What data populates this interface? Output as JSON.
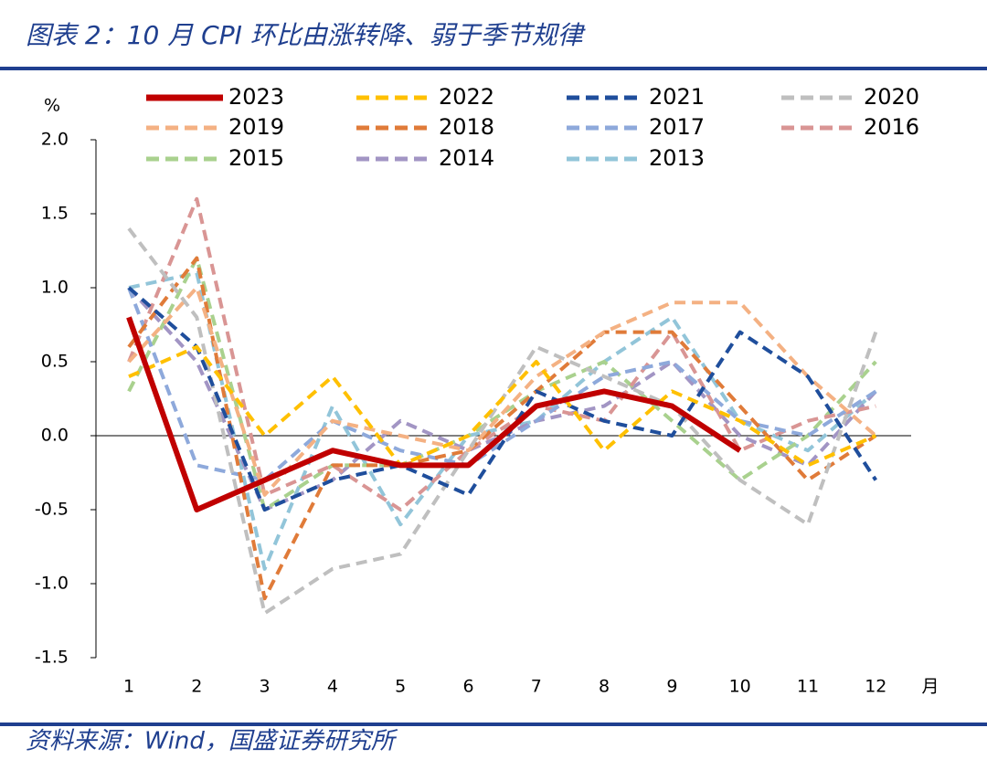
{
  "chart_data": {
    "type": "line",
    "title": "图表 2：10 月 CPI 环比由涨转降、弱于季节规律",
    "source": "资料来源：Wind，国盛证券研究所",
    "y_unit": "%",
    "x_unit": "月",
    "categories": [
      "1",
      "2",
      "3",
      "4",
      "5",
      "6",
      "7",
      "8",
      "9",
      "10",
      "11",
      "12"
    ],
    "ylim": [
      -1.5,
      2.0
    ],
    "yticks": [
      {
        "value": 2.0,
        "label": "2.0"
      },
      1.5,
      {
        "value": 1.0,
        "label": "1.0"
      },
      0.5,
      {
        "value": 0.0,
        "label": "0.0"
      },
      -0.5,
      {
        "value": -1.0,
        "label": "-1.0"
      },
      -1.5
    ],
    "grid": false,
    "series": [
      {
        "name": "2023",
        "color": "#c00000",
        "line_style": "solid",
        "values": [
          0.8,
          -0.5,
          -0.3,
          -0.1,
          -0.2,
          -0.2,
          0.2,
          0.3,
          0.2,
          -0.1,
          null,
          null
        ]
      },
      {
        "name": "2022",
        "color": "#ffc000",
        "line_style": "dashed",
        "values": [
          0.4,
          0.6,
          0.0,
          0.4,
          -0.2,
          0.0,
          0.5,
          -0.1,
          0.3,
          0.1,
          -0.2,
          0.0
        ]
      },
      {
        "name": "2021",
        "color": "#1f4e9c",
        "line_style": "dashed",
        "values": [
          1.0,
          0.6,
          -0.5,
          -0.3,
          -0.2,
          -0.4,
          0.3,
          0.1,
          0.0,
          0.7,
          0.4,
          -0.3
        ]
      },
      {
        "name": "2020",
        "color": "#bfbfbf",
        "line_style": "dashed",
        "values": [
          1.4,
          0.8,
          -1.2,
          -0.9,
          -0.8,
          -0.1,
          0.6,
          0.4,
          0.2,
          -0.3,
          -0.6,
          0.7
        ]
      },
      {
        "name": "2019",
        "color": "#f4b183",
        "line_style": "dashed",
        "values": [
          0.5,
          1.0,
          -0.4,
          0.1,
          0.0,
          -0.1,
          0.4,
          0.7,
          0.9,
          0.9,
          0.4,
          0.0
        ]
      },
      {
        "name": "2018",
        "color": "#e07b39",
        "line_style": "dashed",
        "values": [
          0.6,
          1.2,
          -1.1,
          -0.2,
          -0.2,
          -0.1,
          0.3,
          0.7,
          0.7,
          0.2,
          -0.3,
          0.0
        ]
      },
      {
        "name": "2017",
        "color": "#8ea9db",
        "line_style": "dashed",
        "values": [
          1.0,
          -0.2,
          -0.3,
          0.1,
          -0.1,
          -0.2,
          0.1,
          0.4,
          0.5,
          0.1,
          0.0,
          0.3
        ]
      },
      {
        "name": "2016",
        "color": "#d99594",
        "line_style": "dashed",
        "values": [
          0.5,
          1.6,
          -0.4,
          -0.2,
          -0.5,
          -0.1,
          0.2,
          0.1,
          0.7,
          -0.1,
          0.1,
          0.2
        ]
      },
      {
        "name": "2015",
        "color": "#a9d18e",
        "line_style": "dashed",
        "values": [
          0.3,
          1.2,
          -0.5,
          -0.2,
          -0.2,
          0.0,
          0.3,
          0.5,
          0.1,
          -0.3,
          0.0,
          0.5
        ]
      },
      {
        "name": "2014",
        "color": "#a295c4",
        "line_style": "dashed",
        "values": [
          1.0,
          0.5,
          -0.5,
          -0.3,
          0.1,
          -0.1,
          0.1,
          0.2,
          0.5,
          0.0,
          -0.2,
          0.3
        ]
      },
      {
        "name": "2013",
        "color": "#92c5d9",
        "line_style": "dashed",
        "values": [
          1.0,
          1.1,
          -0.9,
          0.2,
          -0.6,
          0.0,
          0.1,
          0.5,
          0.8,
          0.1,
          -0.1,
          0.3
        ]
      }
    ]
  }
}
